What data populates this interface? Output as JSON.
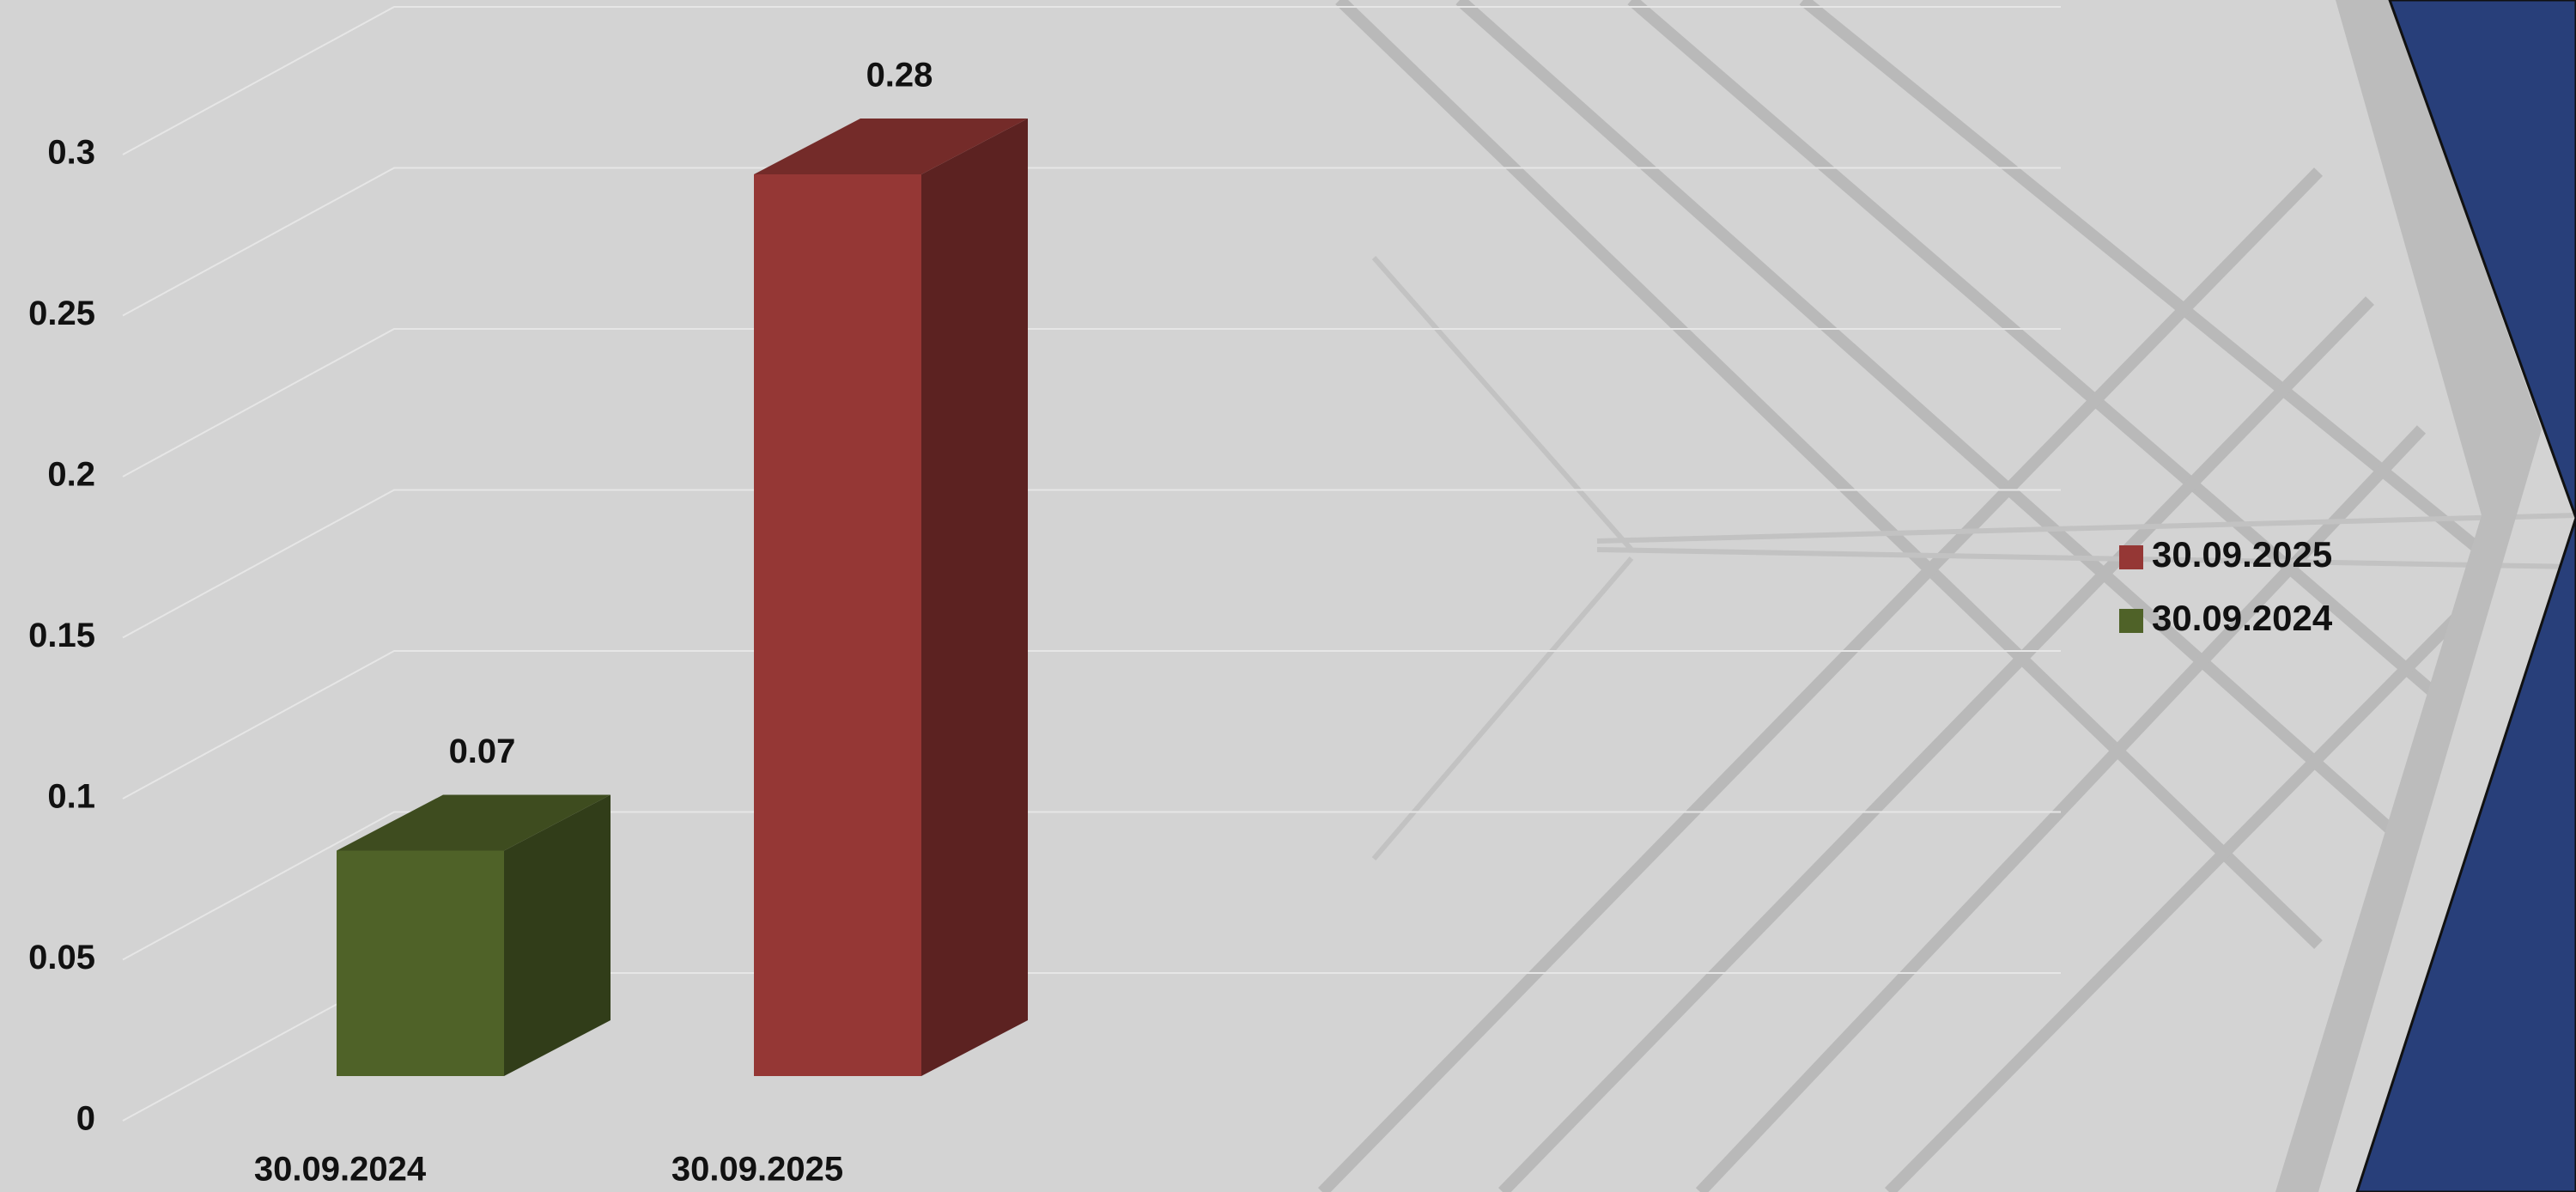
{
  "chart_data": {
    "type": "bar3d",
    "categories": [
      "30.09.2024",
      "30.09.2025"
    ],
    "values": [
      0.07,
      0.28
    ],
    "colors": [
      "#4f6228",
      "#953735"
    ],
    "ylim": [
      0,
      0.3
    ],
    "yticks": [
      0,
      0.05,
      0.1,
      0.15,
      0.2,
      0.25,
      0.3
    ],
    "grid": true,
    "legend": "right"
  }
}
